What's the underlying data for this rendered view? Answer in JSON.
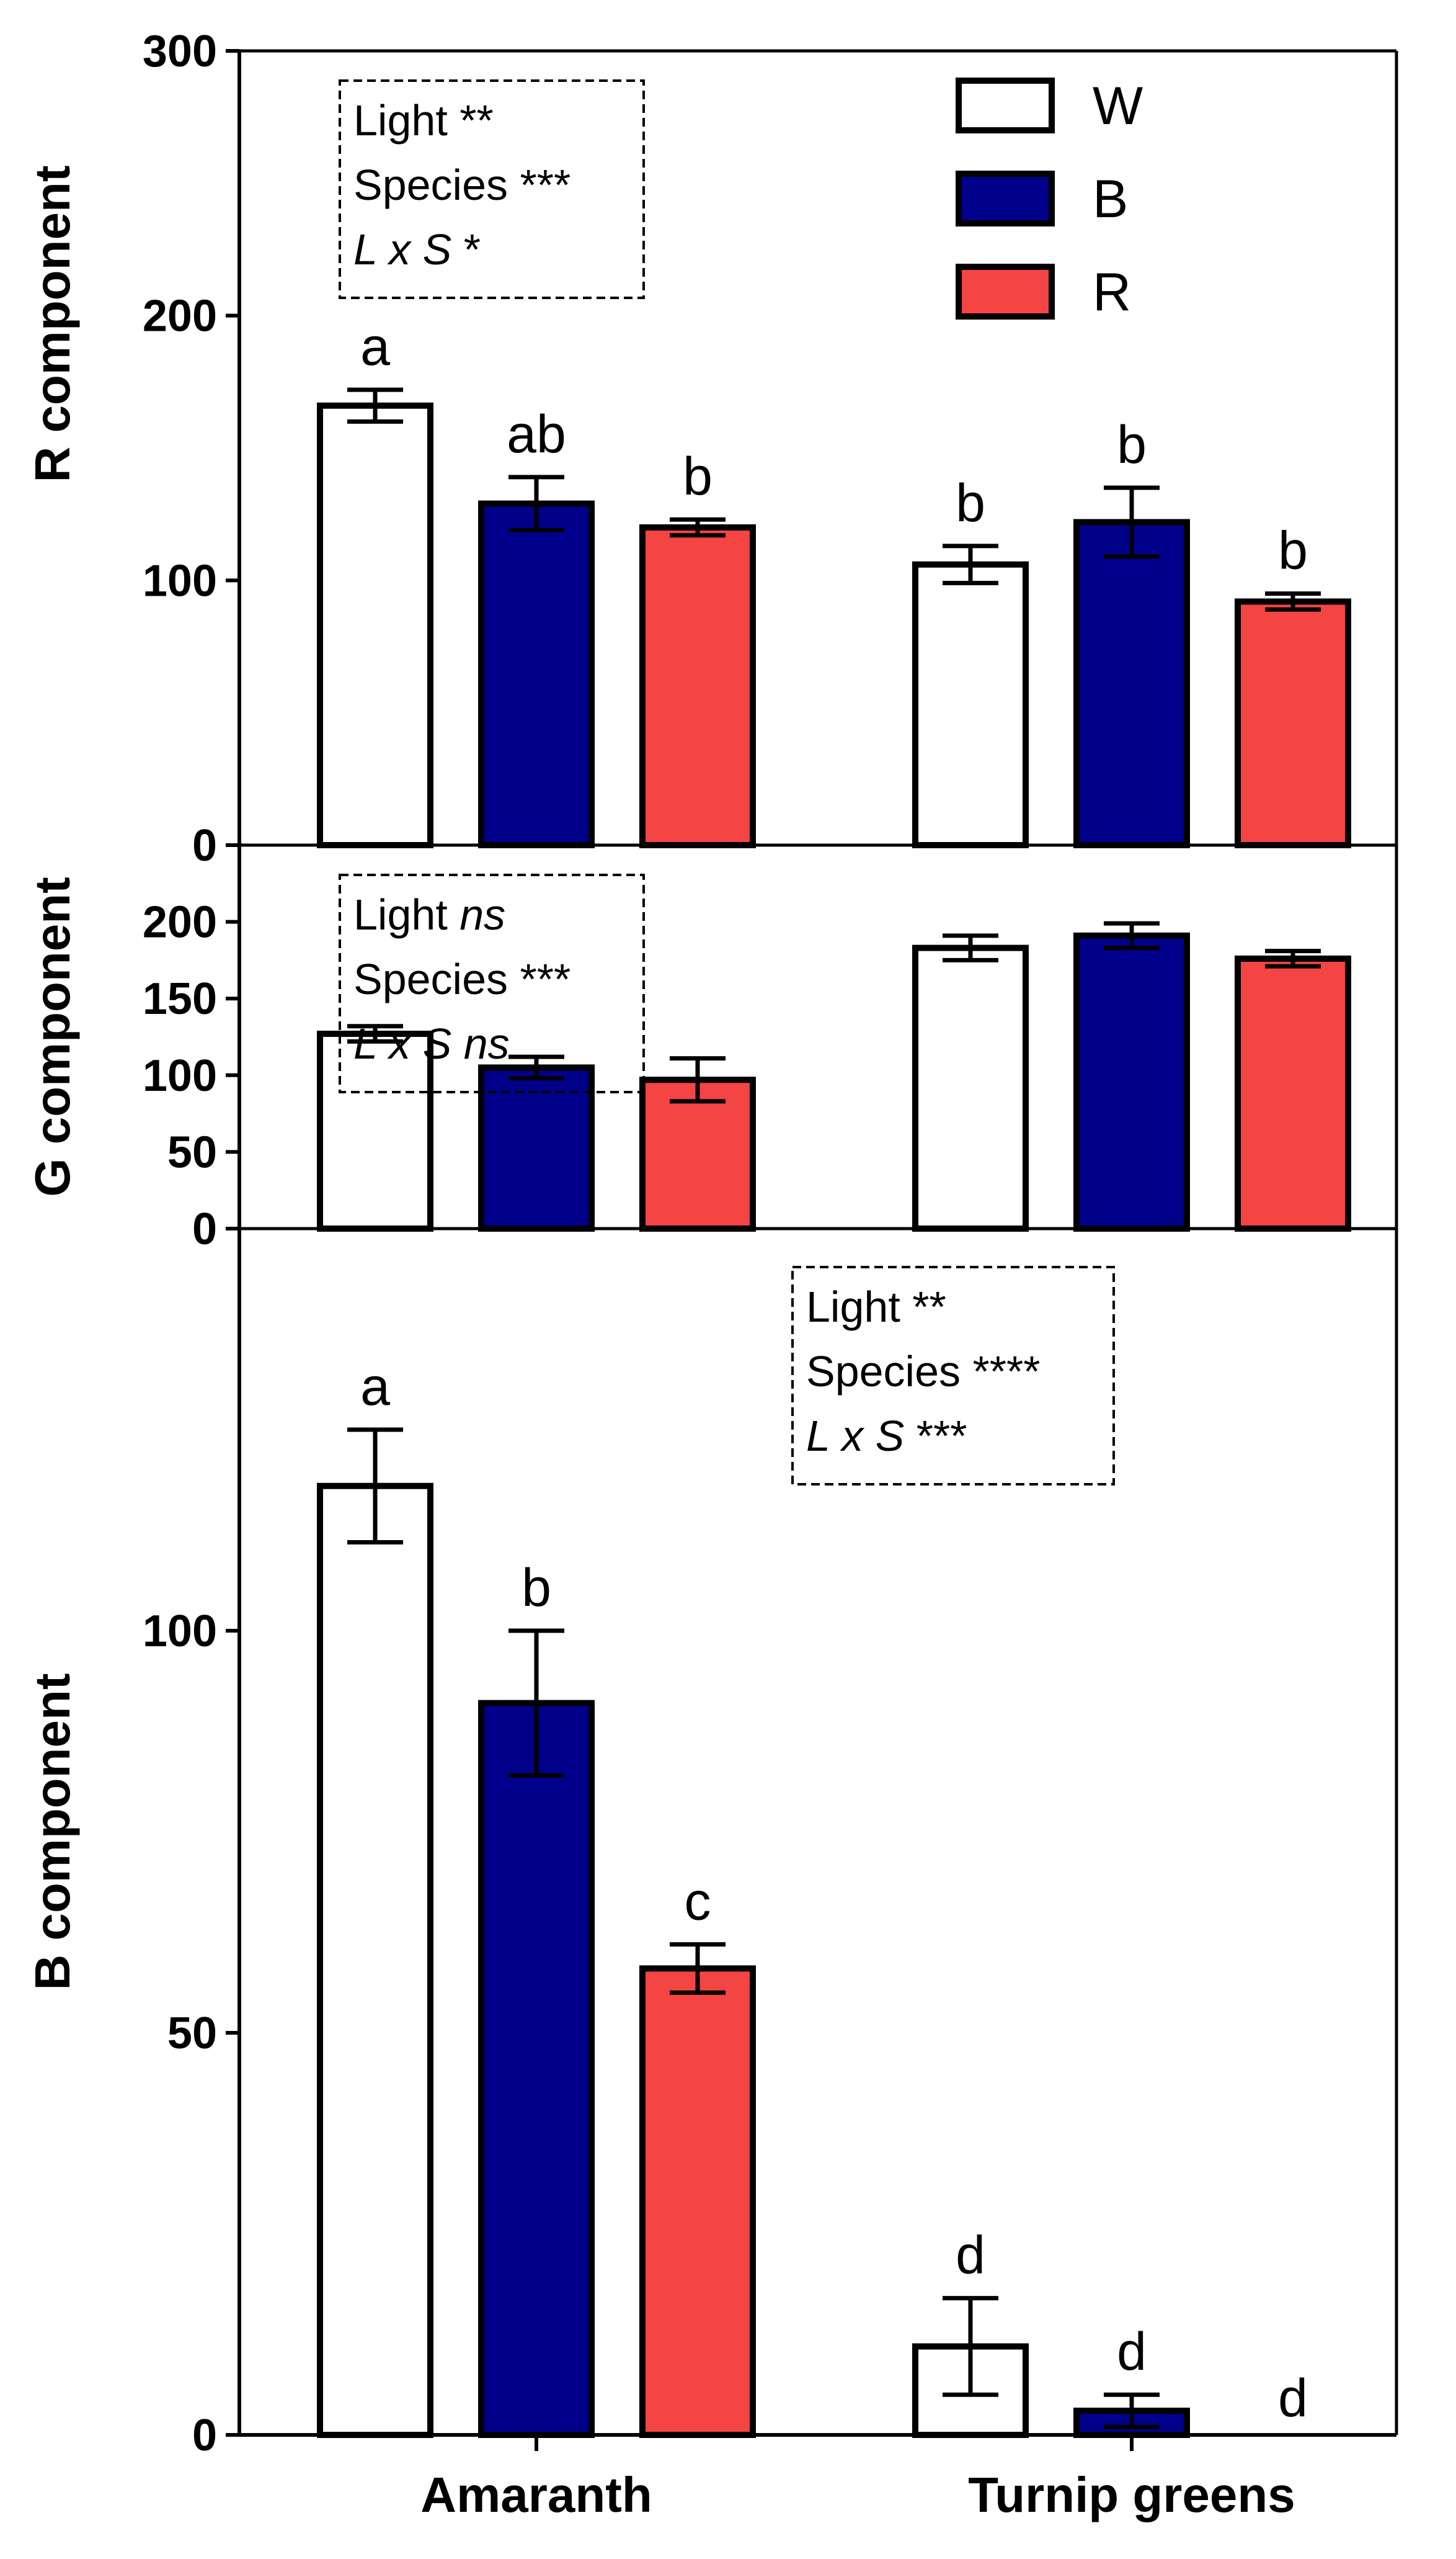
{
  "chart_data": {
    "type": "bar",
    "categories": [
      "Amaranth",
      "Turnip greens"
    ],
    "legend": [
      {
        "name": "W",
        "color": "#ffffff"
      },
      {
        "name": "B",
        "color": "#00008b"
      },
      {
        "name": "R",
        "color": "#f44444"
      }
    ],
    "panels": [
      {
        "ylabel": "R component",
        "ylim": [
          0,
          300
        ],
        "yticks": [
          "0",
          "100",
          "200",
          "300"
        ],
        "ytick_values": [
          0,
          100,
          200,
          300
        ],
        "stats": [
          {
            "label": "Light",
            "sig": "**",
            "italic_sig": false
          },
          {
            "label": "Species",
            "sig": "***",
            "italic_sig": false
          },
          {
            "label": "L x S",
            "sig": "*",
            "italic_sig": false,
            "italic_label": true
          }
        ],
        "stats_position": "top-left",
        "show_legend": true,
        "series": [
          {
            "name": "W",
            "values": [
              166,
              106
            ],
            "errors": [
              6,
              7
            ],
            "letters": [
              "a",
              "b"
            ]
          },
          {
            "name": "B",
            "values": [
              129,
              122
            ],
            "errors": [
              10,
              13
            ],
            "letters": [
              "ab",
              "b"
            ]
          },
          {
            "name": "R",
            "values": [
              120,
              92
            ],
            "errors": [
              3,
              3
            ],
            "letters": [
              "b",
              "b"
            ]
          }
        ]
      },
      {
        "ylabel": "G component",
        "ylim": [
          0,
          250
        ],
        "yticks": [
          "0",
          "50",
          "100",
          "150",
          "200"
        ],
        "ytick_values": [
          0,
          50,
          100,
          150,
          200
        ],
        "stats": [
          {
            "label": "Light",
            "sig": "ns",
            "italic_sig": true
          },
          {
            "label": "Species",
            "sig": "***",
            "italic_sig": false
          },
          {
            "label": "L x S",
            "sig": "ns",
            "italic_sig": true,
            "italic_label": true
          }
        ],
        "stats_position": "top-left",
        "show_legend": false,
        "series": [
          {
            "name": "W",
            "values": [
              127,
              183
            ],
            "errors": [
              5,
              8
            ],
            "letters": [
              "",
              ""
            ]
          },
          {
            "name": "B",
            "values": [
              105,
              191
            ],
            "errors": [
              7,
              8
            ],
            "letters": [
              "",
              ""
            ]
          },
          {
            "name": "R",
            "values": [
              97,
              176
            ],
            "errors": [
              14,
              5
            ],
            "letters": [
              "",
              ""
            ]
          }
        ]
      },
      {
        "ylabel": "B component",
        "ylim": [
          0,
          150
        ],
        "yticks": [
          "0",
          "50",
          "100"
        ],
        "ytick_values": [
          0,
          50,
          100
        ],
        "stats": [
          {
            "label": "Light",
            "sig": "**",
            "italic_sig": false
          },
          {
            "label": "Species",
            "sig": "****",
            "italic_sig": false
          },
          {
            "label": "L x S",
            "sig": "***",
            "italic_sig": false,
            "italic_label": true
          }
        ],
        "stats_position": "top-right",
        "show_legend": false,
        "series": [
          {
            "name": "W",
            "values": [
              118,
              11
            ],
            "errors": [
              7,
              6
            ],
            "letters": [
              "a",
              "d"
            ]
          },
          {
            "name": "B",
            "values": [
              91,
              3
            ],
            "errors": [
              9,
              2
            ],
            "letters": [
              "b",
              "d"
            ]
          },
          {
            "name": "R",
            "values": [
              58,
              0
            ],
            "errors": [
              3,
              0
            ],
            "letters": [
              "c",
              "d"
            ]
          }
        ]
      }
    ]
  }
}
